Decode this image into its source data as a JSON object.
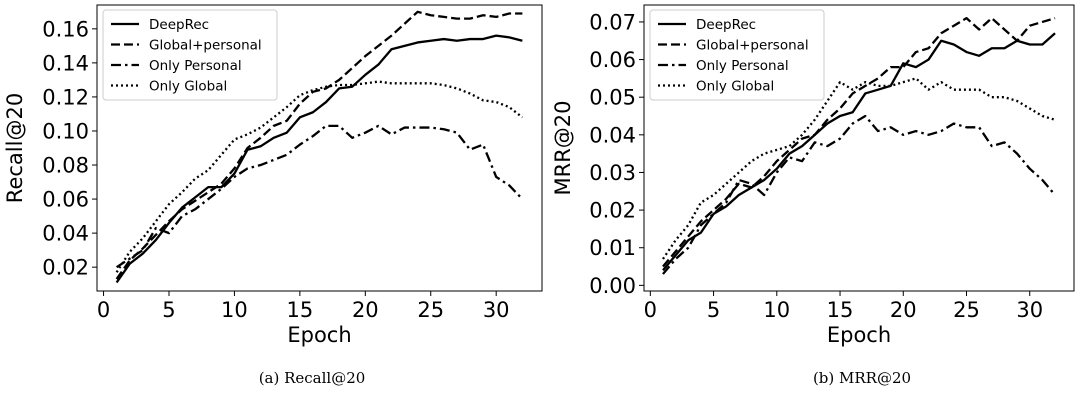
{
  "chart_data": [
    {
      "type": "line",
      "panel": "a",
      "caption": "(a) Recall@20",
      "xlabel": "Epoch",
      "ylabel": "Recall@20",
      "xlim": [
        -0.5,
        33.5
      ],
      "ylim": [
        0.006,
        0.174
      ],
      "xticks": [
        0,
        5,
        10,
        15,
        20,
        25,
        30
      ],
      "yticks": [
        0.02,
        0.04,
        0.06,
        0.08,
        0.1,
        0.12,
        0.14,
        0.16
      ],
      "ytick_labels": [
        "0.02",
        "0.04",
        "0.06",
        "0.08",
        "0.10",
        "0.12",
        "0.14",
        "0.16"
      ],
      "legend_position": "top-left",
      "x": [
        1,
        2,
        3,
        4,
        5,
        6,
        7,
        8,
        9,
        10,
        11,
        12,
        13,
        14,
        15,
        16,
        17,
        18,
        19,
        20,
        21,
        22,
        23,
        24,
        25,
        26,
        27,
        28,
        29,
        30,
        31,
        32
      ],
      "series": [
        {
          "name": "DeepRec",
          "dash": "solid",
          "values": [
            0.011,
            0.022,
            0.028,
            0.036,
            0.046,
            0.055,
            0.061,
            0.067,
            0.067,
            0.075,
            0.089,
            0.091,
            0.096,
            0.099,
            0.108,
            0.111,
            0.117,
            0.125,
            0.126,
            0.133,
            0.139,
            0.148,
            0.15,
            0.152,
            0.153,
            0.154,
            0.153,
            0.154,
            0.154,
            0.156,
            0.155,
            0.153
          ]
        },
        {
          "name": "Global+personal",
          "dash": "dashed",
          "values": [
            0.013,
            0.024,
            0.031,
            0.039,
            0.047,
            0.054,
            0.059,
            0.064,
            0.069,
            0.078,
            0.09,
            0.096,
            0.103,
            0.106,
            0.116,
            0.123,
            0.125,
            0.13,
            0.137,
            0.144,
            0.15,
            0.156,
            0.163,
            0.17,
            0.168,
            0.167,
            0.166,
            0.166,
            0.168,
            0.167,
            0.169,
            0.169
          ]
        },
        {
          "name": "Only Personal",
          "dash": "dashdot",
          "values": [
            0.02,
            0.025,
            0.03,
            0.043,
            0.04,
            0.05,
            0.054,
            0.06,
            0.066,
            0.073,
            0.078,
            0.08,
            0.083,
            0.086,
            0.092,
            0.097,
            0.103,
            0.103,
            0.096,
            0.099,
            0.103,
            0.098,
            0.102,
            0.102,
            0.102,
            0.101,
            0.099,
            0.089,
            0.092,
            0.073,
            0.068,
            0.06
          ]
        },
        {
          "name": "Only Global",
          "dash": "dotted",
          "values": [
            0.017,
            0.029,
            0.037,
            0.047,
            0.057,
            0.064,
            0.072,
            0.077,
            0.086,
            0.095,
            0.098,
            0.102,
            0.108,
            0.114,
            0.121,
            0.124,
            0.126,
            0.127,
            0.127,
            0.128,
            0.129,
            0.128,
            0.128,
            0.128,
            0.128,
            0.127,
            0.125,
            0.122,
            0.118,
            0.117,
            0.114,
            0.108
          ]
        }
      ]
    },
    {
      "type": "line",
      "panel": "b",
      "caption": "(b) MRR@20",
      "xlabel": "Epoch",
      "ylabel": "MRR@20",
      "xlim": [
        -0.5,
        33.5
      ],
      "ylim": [
        -0.0015,
        0.0745
      ],
      "xticks": [
        0,
        5,
        10,
        15,
        20,
        25,
        30
      ],
      "yticks": [
        0.0,
        0.01,
        0.02,
        0.03,
        0.04,
        0.05,
        0.06,
        0.07
      ],
      "ytick_labels": [
        "0.00",
        "0.01",
        "0.02",
        "0.03",
        "0.04",
        "0.05",
        "0.06",
        "0.07"
      ],
      "legend_position": "top-left",
      "x": [
        1,
        2,
        3,
        4,
        5,
        6,
        7,
        8,
        9,
        10,
        11,
        12,
        13,
        14,
        15,
        16,
        17,
        18,
        19,
        20,
        21,
        22,
        23,
        24,
        25,
        26,
        27,
        28,
        29,
        30,
        31,
        32
      ],
      "series": [
        {
          "name": "DeepRec",
          "dash": "solid",
          "values": [
            0.004,
            0.008,
            0.012,
            0.014,
            0.019,
            0.021,
            0.024,
            0.026,
            0.028,
            0.031,
            0.035,
            0.037,
            0.04,
            0.043,
            0.045,
            0.046,
            0.051,
            0.052,
            0.053,
            0.059,
            0.058,
            0.06,
            0.065,
            0.064,
            0.062,
            0.061,
            0.063,
            0.063,
            0.065,
            0.064,
            0.064,
            0.067
          ]
        },
        {
          "name": "Global+personal",
          "dash": "dashed",
          "values": [
            0.005,
            0.009,
            0.013,
            0.017,
            0.02,
            0.023,
            0.027,
            0.026,
            0.029,
            0.033,
            0.036,
            0.039,
            0.04,
            0.044,
            0.047,
            0.051,
            0.053,
            0.055,
            0.058,
            0.058,
            0.062,
            0.063,
            0.067,
            0.069,
            0.071,
            0.068,
            0.071,
            0.068,
            0.065,
            0.069,
            0.07,
            0.071
          ]
        },
        {
          "name": "Only Personal",
          "dash": "dashdot",
          "values": [
            0.003,
            0.007,
            0.01,
            0.016,
            0.019,
            0.022,
            0.028,
            0.027,
            0.024,
            0.03,
            0.034,
            0.033,
            0.038,
            0.037,
            0.039,
            0.043,
            0.045,
            0.041,
            0.042,
            0.04,
            0.041,
            0.04,
            0.041,
            0.043,
            0.042,
            0.042,
            0.037,
            0.038,
            0.035,
            0.031,
            0.028,
            0.024
          ]
        },
        {
          "name": "Only Global",
          "dash": "dotted",
          "values": [
            0.007,
            0.012,
            0.016,
            0.022,
            0.024,
            0.027,
            0.03,
            0.033,
            0.035,
            0.036,
            0.037,
            0.04,
            0.044,
            0.049,
            0.054,
            0.052,
            0.054,
            0.053,
            0.053,
            0.054,
            0.055,
            0.052,
            0.054,
            0.052,
            0.052,
            0.052,
            0.05,
            0.05,
            0.049,
            0.047,
            0.045,
            0.044
          ]
        }
      ]
    }
  ]
}
